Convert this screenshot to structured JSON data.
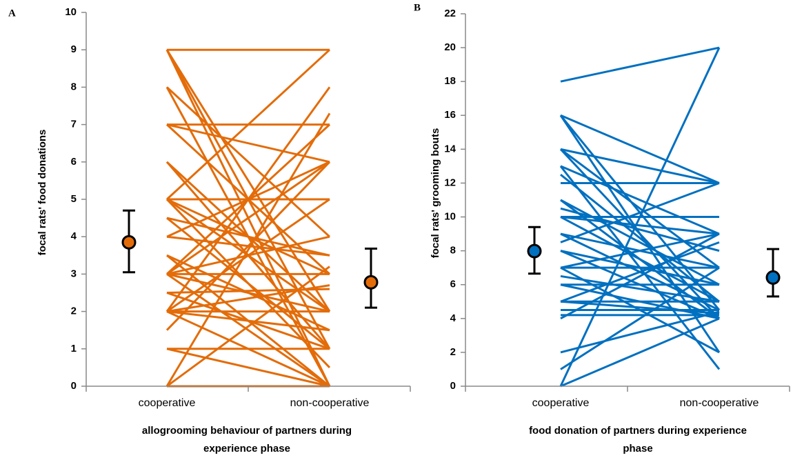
{
  "chart_data": [
    {
      "type": "paired-line",
      "panel_label": "A",
      "ylabel": "focal rats' food donations",
      "xlabel": [
        "allogrooming behaviour of partners during",
        "experience phase"
      ],
      "categories": [
        "cooperative",
        "non-cooperative"
      ],
      "color": "#e36c09",
      "ylim": [
        0,
        10
      ],
      "yticks": [
        0,
        1,
        2,
        3,
        4,
        5,
        6,
        7,
        8,
        9,
        10
      ],
      "lines": [
        [
          9,
          9
        ],
        [
          9,
          0
        ],
        [
          9,
          2
        ],
        [
          9,
          1
        ],
        [
          8,
          4
        ],
        [
          8,
          0
        ],
        [
          7,
          7
        ],
        [
          7,
          6
        ],
        [
          7,
          3
        ],
        [
          6,
          2
        ],
        [
          6,
          1
        ],
        [
          5,
          5
        ],
        [
          5,
          9
        ],
        [
          5,
          0.5
        ],
        [
          5,
          3
        ],
        [
          5,
          2
        ],
        [
          4.5,
          1
        ],
        [
          4,
          6
        ],
        [
          4,
          3.5
        ],
        [
          3.5,
          0
        ],
        [
          3.5,
          1.5
        ],
        [
          3,
          3
        ],
        [
          3,
          7
        ],
        [
          3,
          6
        ],
        [
          3,
          2
        ],
        [
          3,
          0
        ],
        [
          2.5,
          2.6
        ],
        [
          2.5,
          1
        ],
        [
          2,
          2
        ],
        [
          2,
          8
        ],
        [
          2,
          5
        ],
        [
          2,
          1.5
        ],
        [
          2,
          0
        ],
        [
          1.5,
          6
        ],
        [
          1,
          1
        ],
        [
          1,
          0
        ],
        [
          0,
          0
        ],
        [
          0,
          7.3
        ],
        [
          0,
          3.2
        ],
        [
          3,
          4
        ],
        [
          4.5,
          3.5
        ],
        [
          2,
          2.7
        ]
      ],
      "mean": [
        3.85,
        2.78
      ],
      "lower": [
        3.05,
        2.1
      ],
      "upper": [
        4.7,
        3.68
      ]
    },
    {
      "type": "paired-line",
      "panel_label": "B",
      "ylabel": "focal rats' grooming bouts",
      "xlabel": [
        "food donation of partners during experience",
        "phase"
      ],
      "categories": [
        "cooperative",
        "non-cooperative"
      ],
      "color": "#0070c0",
      "ylim": [
        0,
        22
      ],
      "yticks": [
        0,
        2,
        4,
        6,
        8,
        10,
        12,
        14,
        16,
        18,
        20,
        22
      ],
      "lines": [
        [
          18,
          20
        ],
        [
          0,
          20
        ],
        [
          16,
          12
        ],
        [
          16,
          4.5
        ],
        [
          16,
          2
        ],
        [
          14,
          12
        ],
        [
          14,
          7
        ],
        [
          14,
          4
        ],
        [
          13,
          9
        ],
        [
          13,
          1
        ],
        [
          12.5,
          5
        ],
        [
          12,
          12
        ],
        [
          11,
          6
        ],
        [
          11,
          4
        ],
        [
          10.5,
          8
        ],
        [
          10,
          9
        ],
        [
          10,
          10
        ],
        [
          10,
          5
        ],
        [
          9,
          7
        ],
        [
          9,
          4.5
        ],
        [
          8.5,
          12
        ],
        [
          8,
          6
        ],
        [
          8,
          4
        ],
        [
          7,
          9
        ],
        [
          7,
          7
        ],
        [
          7,
          2
        ],
        [
          6.5,
          5
        ],
        [
          6,
          6
        ],
        [
          6,
          4
        ],
        [
          5,
          5
        ],
        [
          5,
          8.5
        ],
        [
          5,
          4.3
        ],
        [
          4.5,
          4.5
        ],
        [
          4.2,
          4.2
        ],
        [
          4,
          9
        ],
        [
          2,
          4.4
        ],
        [
          1,
          7
        ],
        [
          0,
          4
        ]
      ],
      "mean": [
        7.98,
        6.42
      ],
      "lower": [
        6.65,
        5.3
      ],
      "upper": [
        9.4,
        8.1
      ]
    }
  ]
}
